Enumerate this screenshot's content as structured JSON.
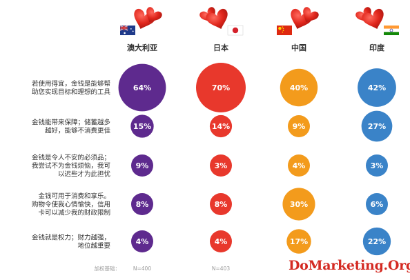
{
  "chart_data": {
    "type": "bubble-matrix",
    "unit": "%",
    "columns": [
      {
        "name": "澳大利亚",
        "flag": "australia",
        "color": "#5e2a8e",
        "n": "N=400",
        "values": [
          64,
          15,
          9,
          8,
          4
        ]
      },
      {
        "name": "日本",
        "flag": "japan",
        "color": "#e8382c",
        "n": "N=403",
        "values": [
          70,
          14,
          3,
          8,
          4
        ]
      },
      {
        "name": "中国",
        "flag": "china",
        "color": "#f39b1c",
        "n": "",
        "values": [
          40,
          9,
          4,
          30,
          17
        ]
      },
      {
        "name": "印度",
        "flag": "india",
        "color": "#3a83c8",
        "n": "",
        "values": [
          42,
          27,
          3,
          6,
          22
        ]
      }
    ],
    "rows": [
      {
        "lines": [
          "若使用得宜，金钱是能够帮",
          "助您实现目标和理想的工具"
        ]
      },
      {
        "lines": [
          "金钱能带来保障；储蓄越多",
          "越好，能够不消费更佳"
        ]
      },
      {
        "lines": [
          "金钱是令人不安的必须品；",
          "我尝试不为金钱烦恼，我可",
          "以迟些才为此担忧"
        ]
      },
      {
        "lines": [
          "金钱可用于消费和享乐。",
          "购物令使我心情愉快，信用",
          "卡可以减少我的财政限制"
        ]
      },
      {
        "lines": [
          "金钱就是权力；财力越强，",
          "地位越重要"
        ]
      }
    ],
    "base_label": "加权基础："
  },
  "watermark": "DoMarketing.Org"
}
